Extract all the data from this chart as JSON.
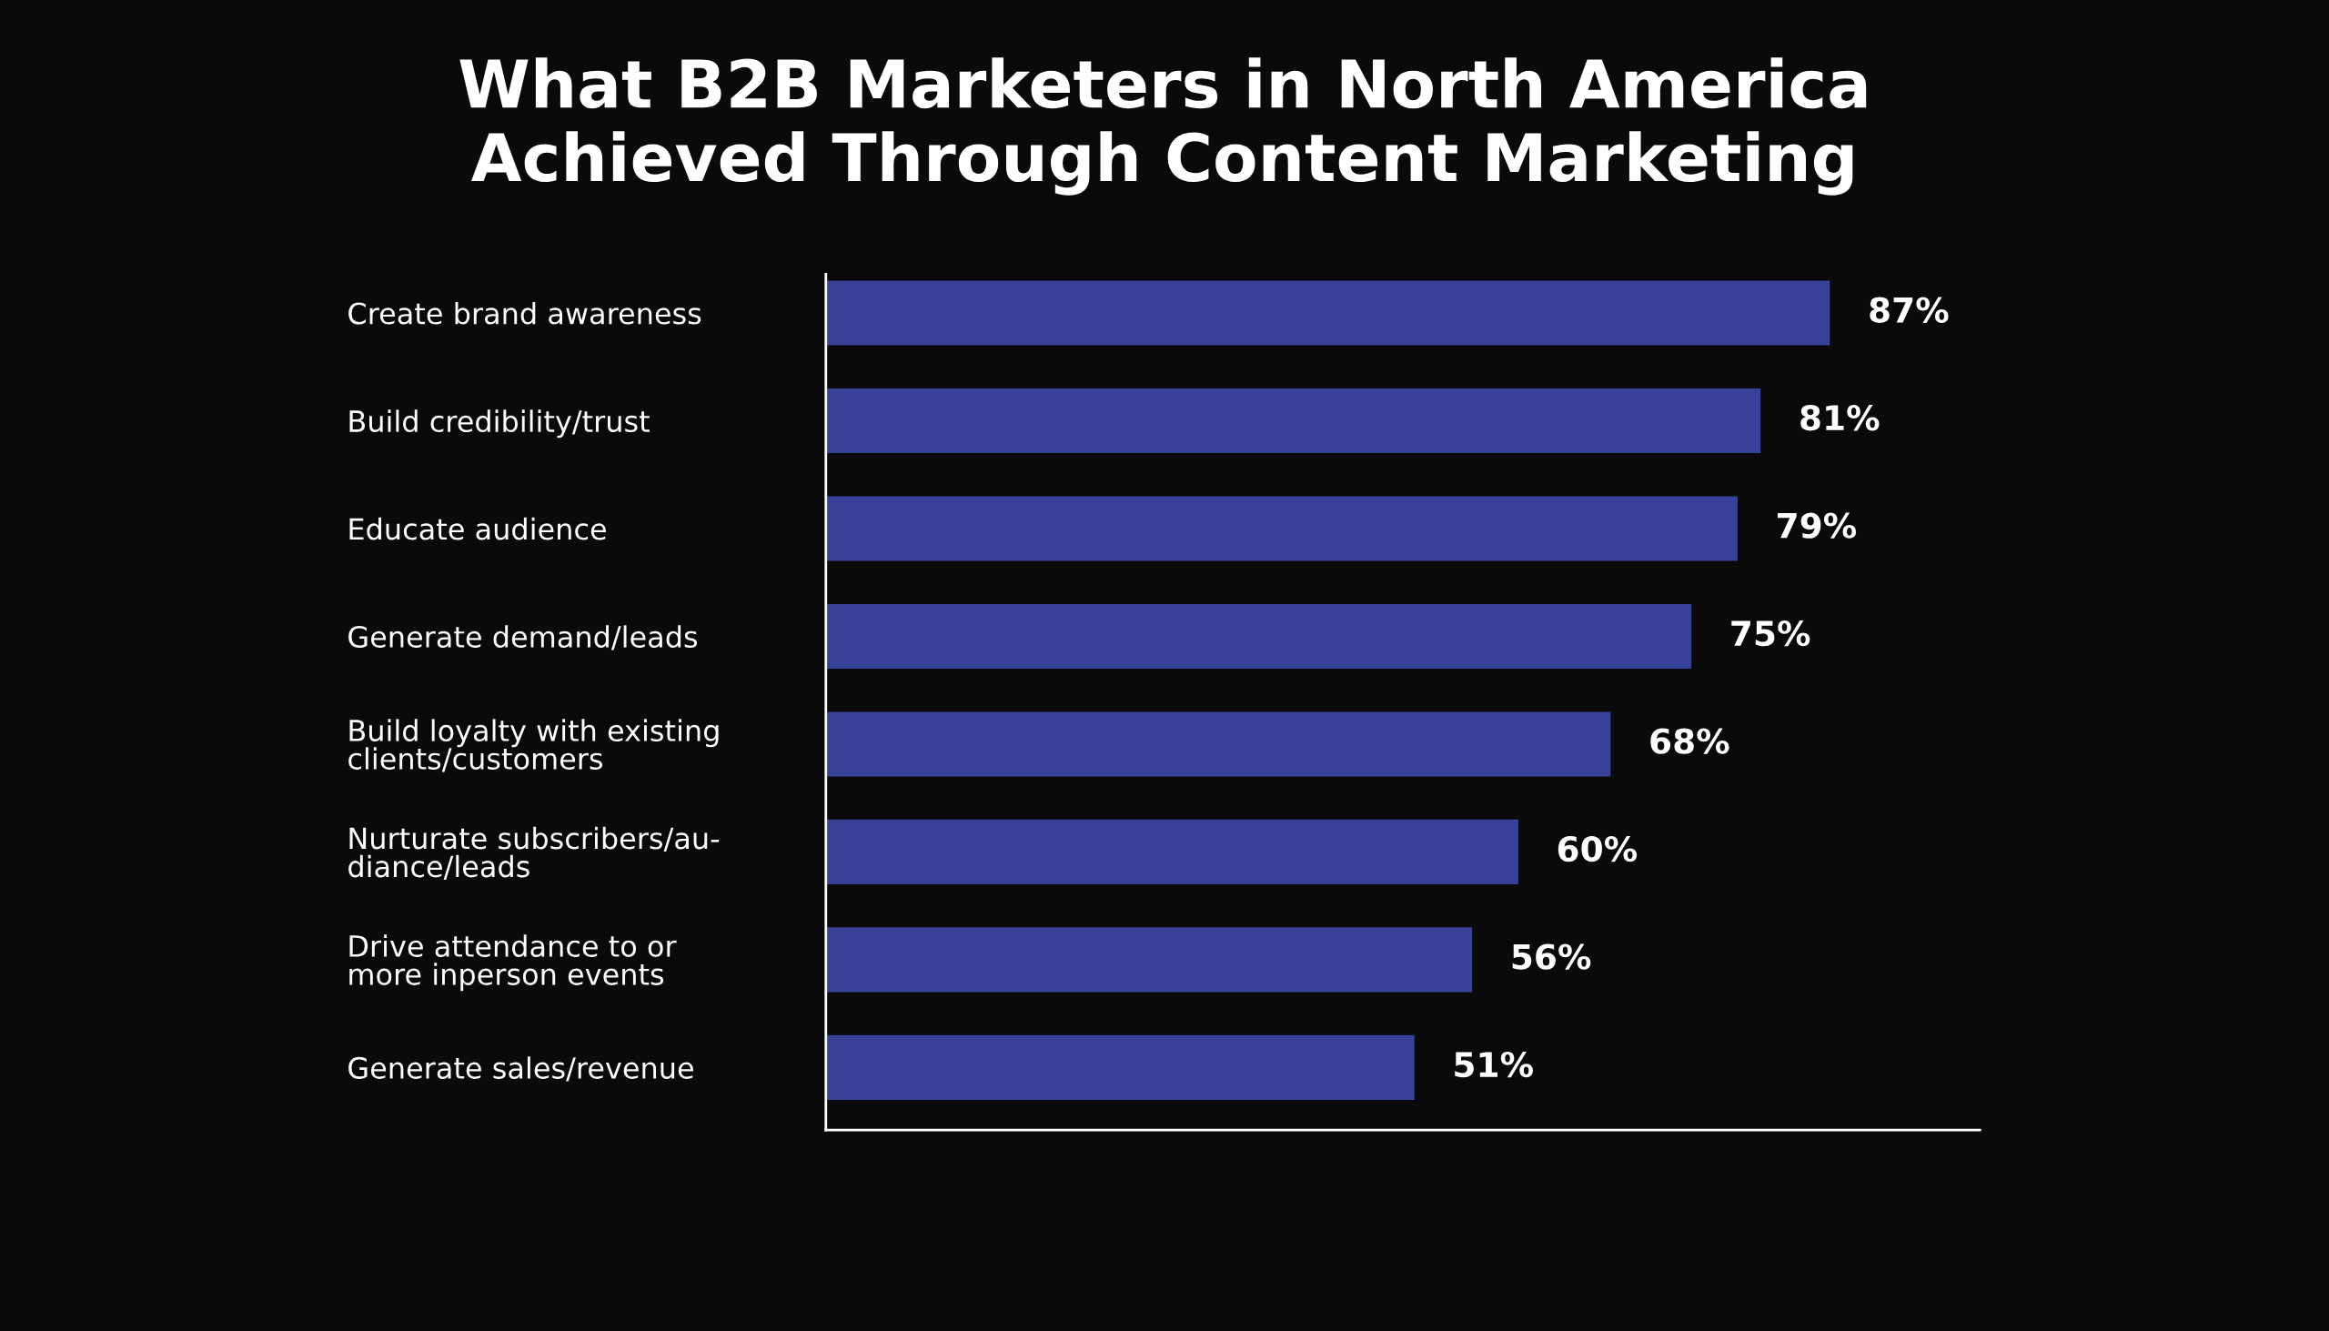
{
  "chart_data": {
    "type": "bar",
    "orientation": "horizontal",
    "title": "What B2B Marketers in North America\nAchieved Through Content Marketing",
    "categories": [
      "Create brand awareness",
      "Build credibility/trust",
      "Educate audience",
      "Generate demand/leads",
      "Build loyalty with existing\nclients/customers",
      "Nurturate subscribers/au-\ndiance/leads",
      "Drive attendance to or\nmore inperson events",
      "Generate sales/revenue"
    ],
    "values": [
      87,
      81,
      79,
      75,
      68,
      60,
      56,
      51
    ],
    "value_labels": [
      "87%",
      "81%",
      "79%",
      "75%",
      "68%",
      "60%",
      "56%",
      "51%"
    ],
    "color": "#38419a",
    "xlim": [
      0,
      100
    ],
    "tick_labels": "y",
    "grid": false,
    "legend": false
  }
}
